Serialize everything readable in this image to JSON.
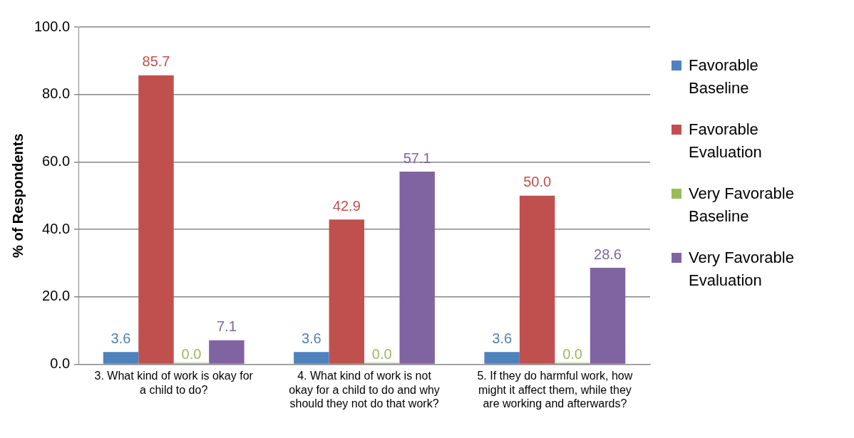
{
  "chart_data": {
    "type": "bar",
    "ylabel": "% of Respondents",
    "categories": [
      "3. What kind of work is okay for a child to do?",
      "4. What kind of work is not okay for a child to do and why should they not do that work?",
      "5. If they do harmful work, how might it affect them, while they are working and afterwards?"
    ],
    "series": [
      {
        "name": "Favorable Baseline",
        "color": "#4f81bd",
        "values": [
          3.6,
          3.6,
          3.6
        ],
        "value_labels": [
          "3.6",
          "3.6",
          "3.6"
        ]
      },
      {
        "name": "Favorable Evaluation",
        "color": "#c0504d",
        "values": [
          85.7,
          42.9,
          50.0
        ],
        "value_labels": [
          "85.7",
          "42.9",
          "50.0"
        ]
      },
      {
        "name": "Very Favorable Baseline",
        "color": "#9bbb59",
        "values": [
          0,
          0,
          0
        ],
        "value_labels": [
          "0.0",
          "0.0",
          "0.0"
        ]
      },
      {
        "name": "Very Favorable Evaluation",
        "color": "#8064a2",
        "values": [
          7.1,
          57.1,
          28.6
        ],
        "value_labels": [
          "7.1",
          "57.1",
          "28.6"
        ]
      }
    ],
    "ylim": [
      0,
      100
    ],
    "yticks": [
      {
        "value": 0,
        "label": "0.0"
      },
      {
        "value": 20,
        "label": "20.0"
      },
      {
        "value": 40,
        "label": "40.0"
      },
      {
        "value": 60,
        "label": "60.0"
      },
      {
        "value": 80,
        "label": "80.0"
      },
      {
        "value": 100,
        "label": "100.0"
      }
    ],
    "grid": "y",
    "legend": "right"
  }
}
